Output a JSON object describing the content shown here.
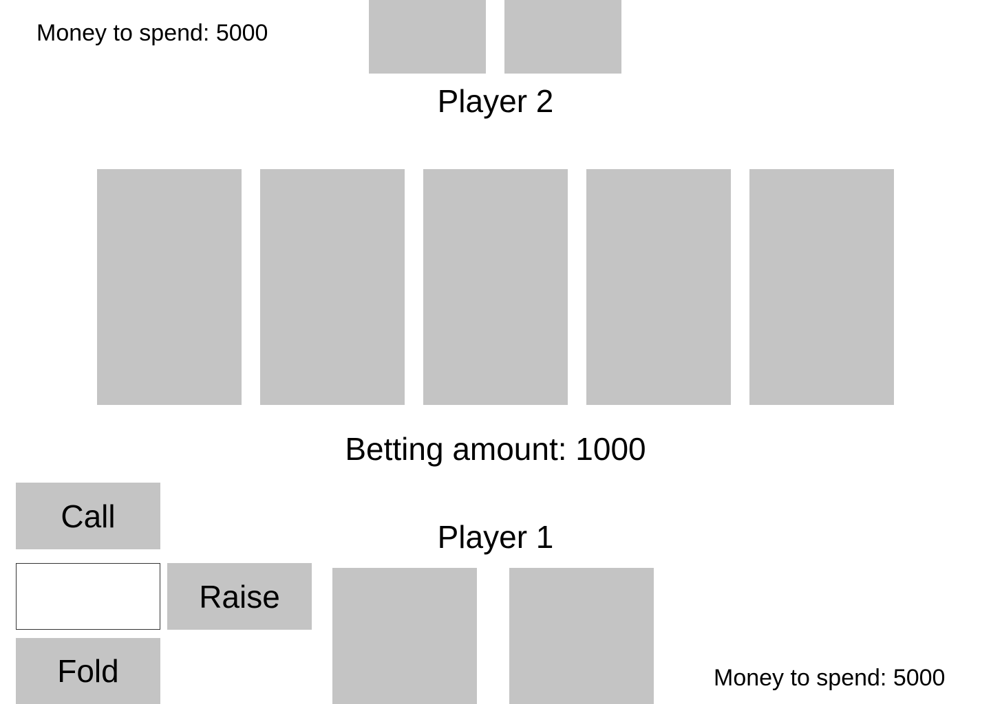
{
  "player2": {
    "name": "Player 2",
    "money_text": "Money to spend: 5000",
    "hand": [
      "face-down",
      "face-down"
    ]
  },
  "board": {
    "community_cards": [
      "face-down",
      "face-down",
      "face-down",
      "face-down",
      "face-down"
    ],
    "betting_text": "Betting amount: 1000"
  },
  "player1": {
    "name": "Player 1",
    "money_text": "Money to spend: 5000",
    "hand": [
      "face-down",
      "face-down"
    ]
  },
  "actions": {
    "call_label": "Call",
    "raise_label": "Raise",
    "fold_label": "Fold",
    "raise_input_value": "",
    "raise_input_placeholder": ""
  },
  "colors": {
    "card_back": "#c4c4c4",
    "button_bg": "#c4c4c4",
    "background": "#ffffff"
  }
}
